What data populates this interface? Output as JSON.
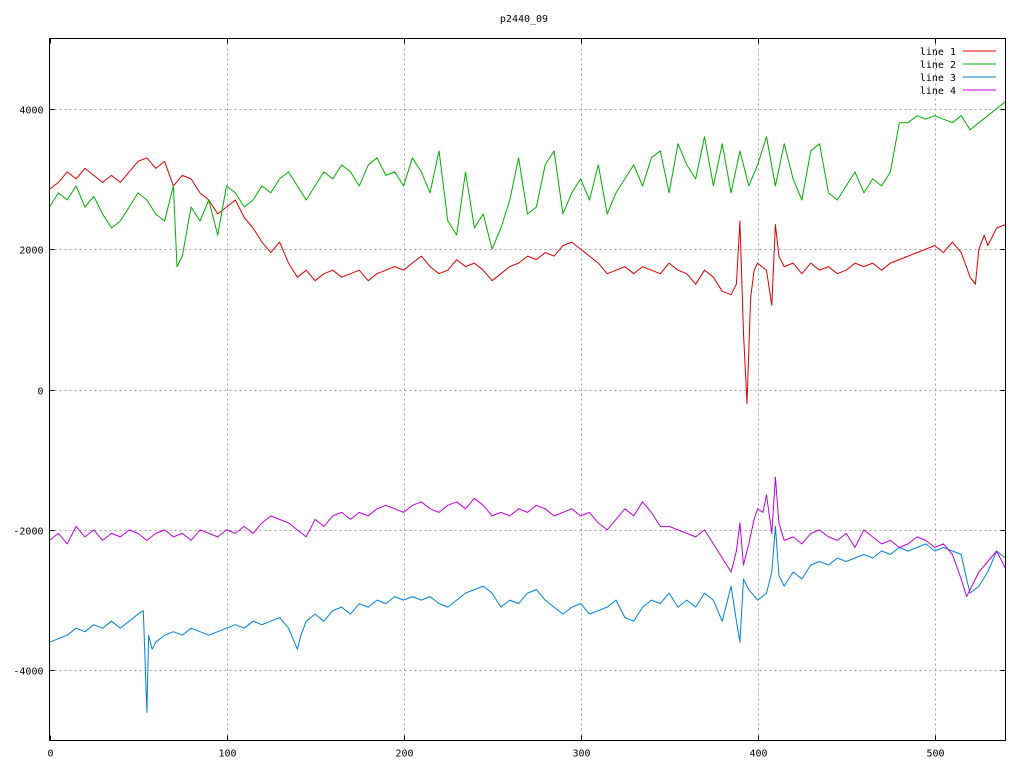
{
  "chart_data": {
    "type": "line",
    "title": "p2440_09",
    "xlim": [
      0,
      540
    ],
    "ylim": [
      -5000,
      5000
    ],
    "x_ticks": [
      0,
      100,
      200,
      300,
      400,
      500
    ],
    "y_ticks": [
      -4000,
      -2000,
      0,
      2000,
      4000
    ],
    "grid": true,
    "legend_position": "top-right",
    "series": [
      {
        "name": "line 1",
        "color": "#e00000",
        "x": [
          0,
          5,
          10,
          15,
          20,
          25,
          30,
          35,
          40,
          45,
          50,
          55,
          60,
          65,
          70,
          75,
          80,
          85,
          90,
          95,
          100,
          105,
          110,
          115,
          120,
          125,
          130,
          135,
          140,
          145,
          150,
          155,
          160,
          165,
          170,
          175,
          180,
          185,
          190,
          195,
          200,
          205,
          210,
          215,
          220,
          225,
          230,
          235,
          240,
          245,
          250,
          255,
          260,
          265,
          270,
          275,
          280,
          285,
          290,
          295,
          300,
          305,
          310,
          315,
          320,
          325,
          330,
          335,
          340,
          345,
          350,
          355,
          360,
          365,
          370,
          375,
          380,
          385,
          388,
          390,
          392,
          394,
          396,
          398,
          400,
          405,
          408,
          410,
          412,
          415,
          420,
          425,
          430,
          435,
          440,
          445,
          450,
          455,
          460,
          465,
          470,
          475,
          480,
          485,
          490,
          495,
          500,
          505,
          510,
          515,
          520,
          523,
          525,
          528,
          530,
          535,
          540
        ],
        "y": [
          2850,
          2950,
          3100,
          3000,
          3150,
          3050,
          2950,
          3050,
          2950,
          3100,
          3250,
          3300,
          3150,
          3250,
          2900,
          3050,
          3000,
          2800,
          2700,
          2500,
          2600,
          2700,
          2450,
          2300,
          2100,
          1950,
          2100,
          1800,
          1600,
          1700,
          1550,
          1650,
          1700,
          1600,
          1650,
          1700,
          1550,
          1650,
          1700,
          1750,
          1700,
          1800,
          1900,
          1750,
          1650,
          1700,
          1850,
          1750,
          1800,
          1700,
          1550,
          1650,
          1750,
          1800,
          1900,
          1850,
          1950,
          1900,
          2050,
          2100,
          2000,
          1900,
          1800,
          1650,
          1700,
          1750,
          1650,
          1750,
          1700,
          1650,
          1800,
          1700,
          1650,
          1500,
          1700,
          1600,
          1400,
          1350,
          1500,
          2400,
          800,
          -200,
          1300,
          1700,
          1800,
          1700,
          1200,
          2350,
          1900,
          1750,
          1800,
          1650,
          1800,
          1700,
          1750,
          1650,
          1700,
          1800,
          1750,
          1800,
          1700,
          1800,
          1850,
          1900,
          1950,
          2000,
          2050,
          1950,
          2100,
          1950,
          1600,
          1500,
          2000,
          2200,
          2050,
          2300,
          2350
        ]
      },
      {
        "name": "line 2",
        "color": "#00b000",
        "x": [
          0,
          5,
          10,
          15,
          20,
          25,
          30,
          35,
          40,
          45,
          50,
          55,
          60,
          65,
          70,
          72,
          75,
          80,
          85,
          90,
          95,
          100,
          105,
          110,
          115,
          120,
          125,
          130,
          135,
          140,
          145,
          150,
          155,
          160,
          165,
          170,
          175,
          180,
          185,
          190,
          195,
          200,
          205,
          210,
          215,
          220,
          225,
          230,
          235,
          240,
          245,
          250,
          255,
          260,
          265,
          270,
          275,
          280,
          285,
          290,
          295,
          300,
          305,
          310,
          315,
          320,
          325,
          330,
          335,
          340,
          345,
          350,
          355,
          360,
          365,
          370,
          375,
          380,
          385,
          390,
          395,
          400,
          405,
          410,
          415,
          420,
          425,
          430,
          435,
          440,
          445,
          450,
          455,
          460,
          465,
          470,
          475,
          480,
          485,
          490,
          495,
          500,
          505,
          510,
          515,
          520,
          525,
          530,
          535,
          540
        ],
        "y": [
          2600,
          2800,
          2700,
          2900,
          2600,
          2750,
          2500,
          2300,
          2400,
          2600,
          2800,
          2700,
          2500,
          2400,
          2900,
          1750,
          1900,
          2600,
          2400,
          2700,
          2200,
          2900,
          2800,
          2600,
          2700,
          2900,
          2800,
          3000,
          3100,
          2900,
          2700,
          2900,
          3100,
          3000,
          3200,
          3100,
          2900,
          3200,
          3300,
          3050,
          3100,
          2900,
          3300,
          3100,
          2800,
          3400,
          2400,
          2200,
          3100,
          2300,
          2500,
          2000,
          2300,
          2700,
          3300,
          2500,
          2600,
          3200,
          3400,
          2500,
          2800,
          3000,
          2700,
          3200,
          2500,
          2800,
          3000,
          3200,
          2900,
          3300,
          3400,
          2800,
          3500,
          3200,
          3000,
          3600,
          2900,
          3500,
          2800,
          3400,
          2900,
          3200,
          3600,
          2900,
          3500,
          3000,
          2700,
          3400,
          3500,
          2800,
          2700,
          2900,
          3100,
          2800,
          3000,
          2900,
          3100,
          3800,
          3800,
          3900,
          3850,
          3900,
          3850,
          3800,
          3900,
          3700,
          3800,
          3900,
          4000,
          4100
        ]
      },
      {
        "name": "line 3",
        "color": "#0080e0",
        "x": [
          0,
          5,
          10,
          15,
          20,
          25,
          30,
          35,
          40,
          45,
          50,
          53,
          55,
          56,
          58,
          60,
          65,
          70,
          75,
          80,
          85,
          90,
          95,
          100,
          105,
          110,
          115,
          120,
          125,
          130,
          135,
          140,
          142,
          145,
          150,
          155,
          160,
          165,
          170,
          175,
          180,
          185,
          190,
          195,
          200,
          205,
          210,
          215,
          220,
          225,
          230,
          235,
          240,
          245,
          250,
          255,
          260,
          265,
          270,
          275,
          280,
          285,
          290,
          295,
          300,
          305,
          310,
          315,
          320,
          325,
          330,
          335,
          340,
          345,
          350,
          355,
          360,
          365,
          370,
          375,
          380,
          385,
          388,
          390,
          392,
          395,
          400,
          405,
          408,
          410,
          412,
          415,
          420,
          425,
          430,
          435,
          440,
          445,
          450,
          455,
          460,
          465,
          470,
          475,
          480,
          485,
          490,
          495,
          500,
          505,
          510,
          515,
          518,
          520,
          525,
          530,
          535,
          540
        ],
        "y": [
          -3600,
          -3550,
          -3500,
          -3400,
          -3450,
          -3350,
          -3400,
          -3300,
          -3400,
          -3300,
          -3200,
          -3150,
          -4600,
          -3500,
          -3700,
          -3600,
          -3500,
          -3450,
          -3500,
          -3400,
          -3450,
          -3500,
          -3450,
          -3400,
          -3350,
          -3400,
          -3300,
          -3350,
          -3300,
          -3250,
          -3400,
          -3700,
          -3500,
          -3300,
          -3200,
          -3300,
          -3150,
          -3100,
          -3200,
          -3050,
          -3100,
          -3000,
          -3050,
          -2950,
          -3000,
          -2950,
          -3000,
          -2950,
          -3050,
          -3100,
          -3000,
          -2900,
          -2850,
          -2800,
          -2900,
          -3100,
          -3000,
          -3050,
          -2900,
          -2850,
          -3000,
          -3100,
          -3200,
          -3100,
          -3050,
          -3200,
          -3150,
          -3100,
          -3000,
          -3250,
          -3300,
          -3100,
          -3000,
          -3050,
          -2900,
          -3100,
          -3000,
          -3100,
          -2900,
          -3000,
          -3300,
          -2800,
          -3300,
          -3600,
          -2700,
          -2850,
          -3000,
          -2900,
          -2600,
          -1950,
          -2650,
          -2800,
          -2600,
          -2700,
          -2500,
          -2450,
          -2500,
          -2400,
          -2450,
          -2400,
          -2350,
          -2400,
          -2300,
          -2350,
          -2250,
          -2300,
          -2250,
          -2200,
          -2300,
          -2250,
          -2300,
          -2350,
          -2700,
          -2900,
          -2800,
          -2600,
          -2300,
          -2400
        ]
      },
      {
        "name": "line 4",
        "color": "#c000e0",
        "x": [
          0,
          5,
          10,
          15,
          20,
          25,
          30,
          35,
          40,
          45,
          50,
          55,
          60,
          65,
          70,
          75,
          80,
          85,
          90,
          95,
          100,
          105,
          110,
          115,
          120,
          125,
          130,
          135,
          140,
          145,
          150,
          155,
          160,
          165,
          170,
          175,
          180,
          185,
          190,
          195,
          200,
          205,
          210,
          215,
          220,
          225,
          230,
          235,
          240,
          245,
          250,
          255,
          260,
          265,
          270,
          275,
          280,
          285,
          290,
          295,
          300,
          305,
          310,
          315,
          320,
          325,
          330,
          335,
          340,
          345,
          350,
          355,
          360,
          365,
          370,
          375,
          380,
          385,
          388,
          390,
          392,
          395,
          398,
          400,
          403,
          405,
          408,
          410,
          412,
          415,
          420,
          425,
          430,
          435,
          440,
          445,
          450,
          455,
          460,
          465,
          470,
          475,
          480,
          485,
          490,
          495,
          500,
          505,
          510,
          515,
          518,
          520,
          525,
          530,
          535,
          540
        ],
        "y": [
          -2150,
          -2050,
          -2200,
          -1950,
          -2100,
          -2000,
          -2150,
          -2050,
          -2100,
          -2000,
          -2050,
          -2150,
          -2050,
          -2000,
          -2100,
          -2050,
          -2150,
          -2000,
          -2050,
          -2100,
          -2000,
          -2050,
          -1950,
          -2050,
          -1900,
          -1800,
          -1850,
          -1900,
          -2000,
          -2100,
          -1850,
          -1950,
          -1800,
          -1750,
          -1850,
          -1750,
          -1800,
          -1700,
          -1650,
          -1700,
          -1750,
          -1650,
          -1600,
          -1700,
          -1750,
          -1650,
          -1600,
          -1700,
          -1550,
          -1650,
          -1800,
          -1750,
          -1800,
          -1700,
          -1750,
          -1650,
          -1700,
          -1800,
          -1750,
          -1700,
          -1800,
          -1750,
          -1900,
          -2000,
          -1850,
          -1700,
          -1800,
          -1600,
          -1750,
          -1950,
          -1950,
          -2000,
          -2050,
          -2100,
          -2000,
          -2200,
          -2400,
          -2600,
          -2300,
          -1900,
          -2500,
          -2200,
          -1850,
          -1700,
          -1750,
          -1500,
          -2050,
          -1250,
          -1900,
          -2150,
          -2100,
          -2200,
          -2050,
          -2000,
          -2100,
          -2150,
          -2050,
          -2250,
          -2000,
          -2100,
          -2200,
          -2150,
          -2250,
          -2200,
          -2100,
          -2150,
          -2250,
          -2200,
          -2350,
          -2700,
          -2950,
          -2850,
          -2600,
          -2450,
          -2300,
          -2550
        ]
      }
    ]
  }
}
